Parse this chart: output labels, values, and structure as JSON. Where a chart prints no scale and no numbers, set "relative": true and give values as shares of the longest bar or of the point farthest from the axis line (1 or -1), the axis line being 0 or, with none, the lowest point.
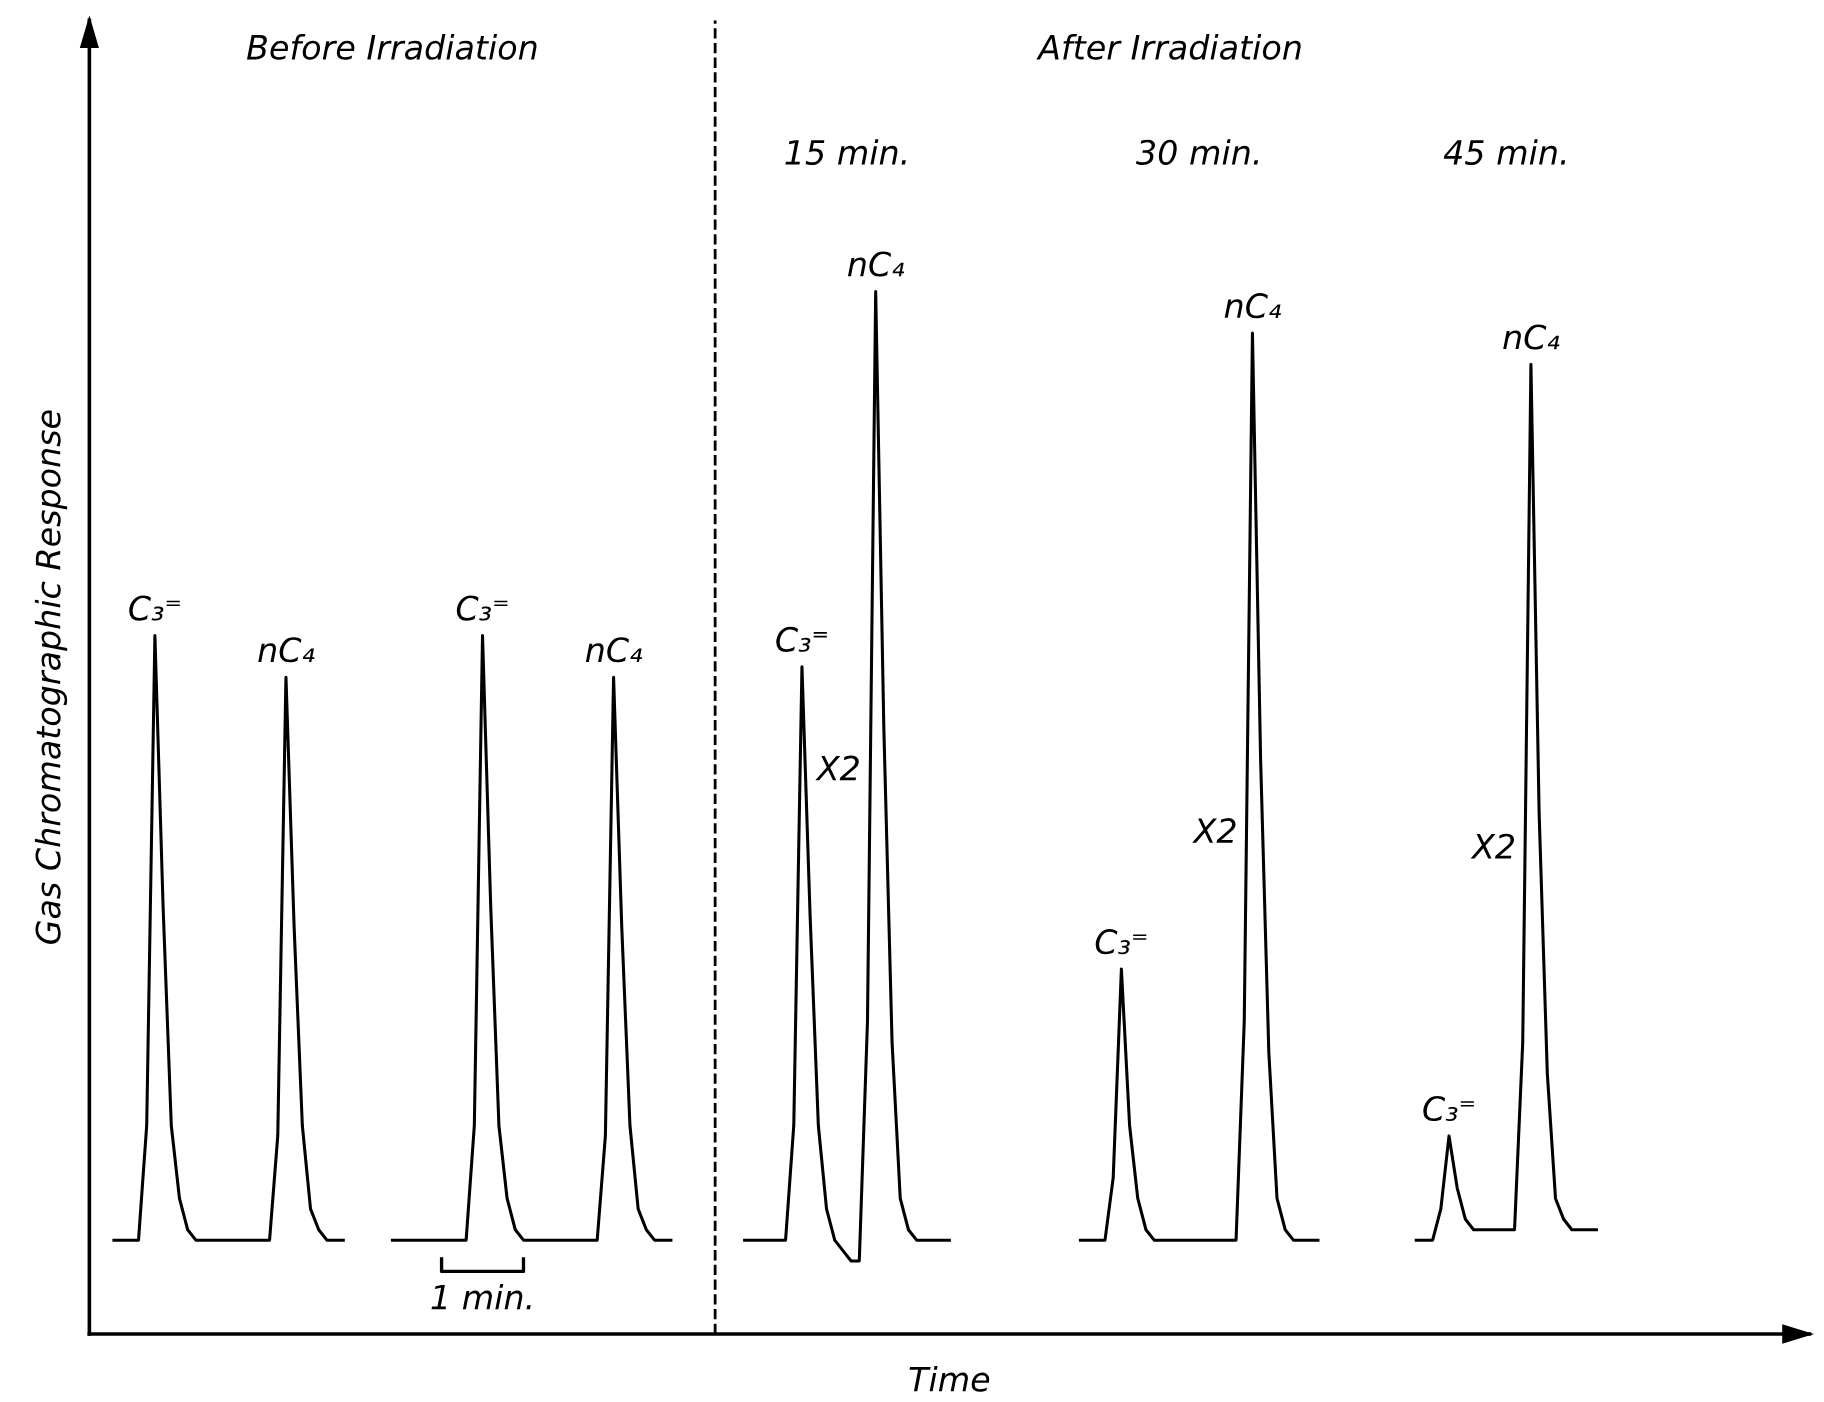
{
  "chart_data": {
    "type": "line",
    "relative": true,
    "xlabel": "Time",
    "ylabel": "Gas Chromatographic Response",
    "line_style": "solid",
    "categories": [
      null,
      null,
      null,
      null,
      null,
      null,
      null,
      null,
      null,
      null,
      null,
      null,
      null,
      null,
      null,
      null,
      null,
      null,
      null,
      null,
      null,
      null,
      null,
      null,
      null,
      null,
      null,
      null,
      null,
      null,
      null,
      null,
      null,
      null,
      null,
      null,
      null,
      null,
      null,
      null,
      null,
      null,
      null,
      null,
      null,
      null,
      null,
      null,
      null,
      null,
      null,
      null,
      null,
      null,
      null,
      null,
      null,
      null,
      null,
      null,
      null,
      null,
      null,
      null,
      null,
      null,
      null,
      null,
      null,
      null,
      null,
      null,
      null,
      null,
      null,
      null,
      null,
      null,
      null,
      null,
      null,
      null,
      null,
      null,
      null,
      null,
      null,
      null,
      null,
      null,
      null,
      null,
      null,
      null,
      null,
      null,
      null,
      null,
      null,
      null,
      null,
      null,
      null,
      null,
      null,
      null,
      null,
      null,
      null,
      null,
      null,
      null,
      null,
      null,
      null,
      null,
      null,
      null,
      null,
      null,
      null,
      null,
      null,
      null,
      null,
      null,
      null,
      null,
      null,
      null,
      null,
      null,
      null,
      null,
      null,
      null,
      null,
      null,
      null,
      null,
      null,
      null,
      null,
      null,
      null,
      null,
      null,
      null,
      null,
      null,
      null,
      null,
      null,
      null,
      null,
      null,
      null,
      null,
      null,
      null,
      null,
      null,
      null,
      null,
      null,
      null,
      null,
      null,
      null,
      null,
      null,
      null,
      null,
      null,
      null,
      null,
      null,
      null,
      null,
      null,
      null,
      null
    ],
    "series": [
      {
        "color": "#000000",
        "values": [
          0.09,
          0.09,
          0.09,
          0.09,
          0.2,
          0.67,
          0.41,
          0.2,
          0.13,
          0.1,
          0.09,
          0.09,
          0.09,
          0.09,
          0.09,
          0.09,
          0.09,
          0.09,
          0.09,
          0.09,
          0.19,
          0.63,
          0.39,
          0.2,
          0.12,
          0.1,
          0.09,
          0.09,
          0.09,
          null,
          null,
          null,
          null,
          null,
          null,
          null,
          null,
          null,
          null,
          null,
          null,
          null,
          null,
          null,
          null,
          null,
          null,
          null,
          null,
          null,
          null,
          null,
          null,
          null,
          null,
          null,
          null,
          null,
          null,
          null,
          null,
          null,
          null,
          null,
          null,
          null,
          null,
          null,
          null,
          null,
          null,
          null,
          null,
          null,
          null,
          null,
          null,
          null,
          null,
          null,
          null,
          null,
          null,
          null,
          null,
          null,
          null,
          null,
          null,
          null,
          null,
          null,
          null,
          null,
          null,
          null,
          null,
          null,
          null,
          null,
          null,
          null,
          null,
          null,
          null,
          null,
          null,
          null,
          null,
          null,
          null,
          null,
          null,
          null,
          null,
          null,
          null,
          null,
          null,
          null,
          null,
          null,
          null,
          null,
          null,
          null,
          null,
          null,
          null,
          null,
          null,
          null,
          null,
          null,
          null,
          null,
          null,
          null,
          null,
          null,
          null,
          null,
          null,
          null,
          null,
          null,
          null,
          null,
          null,
          null,
          null,
          null,
          null,
          null,
          null,
          null,
          null,
          null,
          null,
          null,
          null,
          null,
          null,
          null,
          null,
          null,
          null,
          null,
          null,
          null,
          null,
          null,
          null,
          null,
          null,
          null,
          null,
          null,
          null,
          null,
          null,
          null
        ]
      },
      {
        "color": "#000000",
        "values": [
          null,
          null,
          null,
          null,
          null,
          null,
          null,
          null,
          null,
          null,
          null,
          null,
          null,
          null,
          null,
          null,
          null,
          null,
          null,
          null,
          null,
          null,
          null,
          null,
          null,
          null,
          null,
          null,
          null,
          null,
          null,
          null,
          null,
          null,
          0.09,
          0.09,
          0.09,
          0.09,
          0.09,
          0.09,
          0.09,
          0.09,
          0.09,
          0.09,
          0.2,
          0.67,
          0.41,
          0.2,
          0.13,
          0.1,
          0.09,
          0.09,
          0.09,
          0.09,
          0.09,
          0.09,
          0.09,
          0.09,
          0.09,
          0.09,
          0.19,
          0.63,
          0.39,
          0.2,
          0.12,
          0.1,
          0.09,
          0.09,
          0.09,
          null,
          null,
          null,
          null,
          null,
          null,
          null,
          null,
          null,
          null,
          null,
          null,
          null,
          null,
          null,
          null,
          null,
          null,
          null,
          null,
          null,
          null,
          null,
          null,
          null,
          null,
          null,
          null,
          null,
          null,
          null,
          null,
          null,
          null,
          null,
          null,
          null,
          null,
          null,
          null,
          null,
          null,
          null,
          null,
          null,
          null,
          null,
          null,
          null,
          null,
          null,
          null,
          null,
          null,
          null,
          null,
          null,
          null,
          null,
          null,
          null,
          null,
          null,
          null,
          null,
          null,
          null,
          null,
          null,
          null,
          null,
          null,
          null,
          null,
          null,
          null,
          null,
          null,
          null,
          null,
          null,
          null,
          null,
          null,
          null,
          null,
          null,
          null,
          null,
          null,
          null,
          null,
          null,
          null,
          null,
          null,
          null,
          null,
          null,
          null,
          null,
          null,
          null,
          null,
          null,
          null,
          null,
          null,
          null,
          null,
          null,
          null,
          null
        ]
      },
      {
        "color": "#000000",
        "values": [
          null,
          null,
          null,
          null,
          null,
          null,
          null,
          null,
          null,
          null,
          null,
          null,
          null,
          null,
          null,
          null,
          null,
          null,
          null,
          null,
          null,
          null,
          null,
          null,
          null,
          null,
          null,
          null,
          null,
          null,
          null,
          null,
          null,
          null,
          null,
          null,
          null,
          null,
          null,
          null,
          null,
          null,
          null,
          null,
          null,
          null,
          null,
          null,
          null,
          null,
          null,
          null,
          null,
          null,
          null,
          null,
          null,
          null,
          null,
          null,
          null,
          null,
          null,
          null,
          null,
          null,
          null,
          null,
          null,
          null,
          null,
          null,
          null,
          null,
          null,
          null,
          null,
          0.09,
          0.09,
          0.09,
          0.09,
          0.09,
          0.09,
          0.2,
          0.64,
          0.4,
          0.2,
          0.12,
          0.09,
          0.08,
          0.07,
          0.07,
          0.3,
          1.0,
          0.58,
          0.28,
          0.13,
          0.1,
          0.09,
          0.09,
          0.09,
          0.09,
          0.09,
          null,
          null,
          null,
          null,
          null,
          null,
          null,
          null,
          null,
          null,
          null,
          null,
          null,
          null,
          null,
          null,
          null,
          null,
          null,
          null,
          null,
          null,
          null,
          null,
          null,
          null,
          null,
          null,
          null,
          null,
          null,
          null,
          null,
          null,
          null,
          null,
          null,
          null,
          null,
          null,
          null,
          null,
          null,
          null,
          null,
          null,
          null,
          null,
          null,
          null,
          null,
          null,
          null,
          null,
          null,
          null,
          null,
          null,
          null,
          null,
          null,
          null,
          null,
          null,
          null,
          null,
          null,
          null,
          null,
          null,
          null,
          null,
          null,
          null,
          null,
          null,
          null,
          null,
          null
        ]
      },
      {
        "color": "#000000",
        "values": [
          null,
          null,
          null,
          null,
          null,
          null,
          null,
          null,
          null,
          null,
          null,
          null,
          null,
          null,
          null,
          null,
          null,
          null,
          null,
          null,
          null,
          null,
          null,
          null,
          null,
          null,
          null,
          null,
          null,
          null,
          null,
          null,
          null,
          null,
          null,
          null,
          null,
          null,
          null,
          null,
          null,
          null,
          null,
          null,
          null,
          null,
          null,
          null,
          null,
          null,
          null,
          null,
          null,
          null,
          null,
          null,
          null,
          null,
          null,
          null,
          null,
          null,
          null,
          null,
          null,
          null,
          null,
          null,
          null,
          null,
          null,
          null,
          null,
          null,
          null,
          null,
          null,
          null,
          null,
          null,
          null,
          null,
          null,
          null,
          null,
          null,
          null,
          null,
          null,
          null,
          null,
          null,
          null,
          null,
          null,
          null,
          null,
          null,
          null,
          null,
          null,
          null,
          null,
          null,
          null,
          null,
          null,
          null,
          null,
          null,
          null,
          null,
          null,
          null,
          null,
          null,
          null,
          null,
          0.09,
          0.09,
          0.09,
          0.09,
          0.15,
          0.35,
          0.2,
          0.13,
          0.1,
          0.09,
          0.09,
          0.09,
          0.09,
          0.09,
          0.09,
          0.09,
          0.09,
          0.09,
          0.09,
          0.09,
          0.3,
          0.96,
          0.55,
          0.27,
          0.13,
          0.1,
          0.09,
          0.09,
          0.09,
          0.09,
          null,
          null,
          null,
          null,
          null,
          null,
          null,
          null,
          null,
          null,
          null,
          null,
          null,
          null,
          null,
          null,
          null,
          null,
          null,
          null,
          null,
          null,
          null,
          null,
          null,
          null,
          null,
          null,
          null,
          null,
          null,
          null,
          null,
          null
        ]
      },
      {
        "color": "#000000",
        "values": [
          null,
          null,
          null,
          null,
          null,
          null,
          null,
          null,
          null,
          null,
          null,
          null,
          null,
          null,
          null,
          null,
          null,
          null,
          null,
          null,
          null,
          null,
          null,
          null,
          null,
          null,
          null,
          null,
          null,
          null,
          null,
          null,
          null,
          null,
          null,
          null,
          null,
          null,
          null,
          null,
          null,
          null,
          null,
          null,
          null,
          null,
          null,
          null,
          null,
          null,
          null,
          null,
          null,
          null,
          null,
          null,
          null,
          null,
          null,
          null,
          null,
          null,
          null,
          null,
          null,
          null,
          null,
          null,
          null,
          null,
          null,
          null,
          null,
          null,
          null,
          null,
          null,
          null,
          null,
          null,
          null,
          null,
          null,
          null,
          null,
          null,
          null,
          null,
          null,
          null,
          null,
          null,
          null,
          null,
          null,
          null,
          null,
          null,
          null,
          null,
          null,
          null,
          null,
          null,
          null,
          null,
          null,
          null,
          null,
          null,
          null,
          null,
          null,
          null,
          null,
          null,
          null,
          null,
          null,
          null,
          null,
          null,
          null,
          null,
          null,
          null,
          null,
          null,
          null,
          null,
          null,
          null,
          null,
          null,
          null,
          null,
          null,
          null,
          null,
          null,
          null,
          null,
          null,
          null,
          null,
          null,
          null,
          null,
          null,
          null,
          null,
          null,
          null,
          null,
          null,
          null,
          null,
          null,
          null,
          0.09,
          0.09,
          0.09,
          0.12,
          0.19,
          0.14,
          0.11,
          0.1,
          0.1,
          0.1,
          0.1,
          0.1,
          0.1,
          0.28,
          0.93,
          0.5,
          0.25,
          0.13,
          0.11,
          0.1,
          0.1,
          0.1,
          0.1
        ]
      }
    ],
    "ref_lines": [
      {
        "axis": "x",
        "color": "#000000",
        "line_style": "dashed"
      }
    ],
    "annotations": [
      "Before Irradiation",
      "After Irradiation",
      "15 min.",
      "30 min.",
      "45 min.",
      "C₃⁼",
      "nC₄",
      "C₃⁼",
      "nC₄",
      "C₃⁼",
      "nC₄",
      "C₃⁼",
      "nC₄",
      "C₃⁼",
      "nC₄",
      "X2",
      "X2",
      "X2",
      "1 min."
    ]
  }
}
